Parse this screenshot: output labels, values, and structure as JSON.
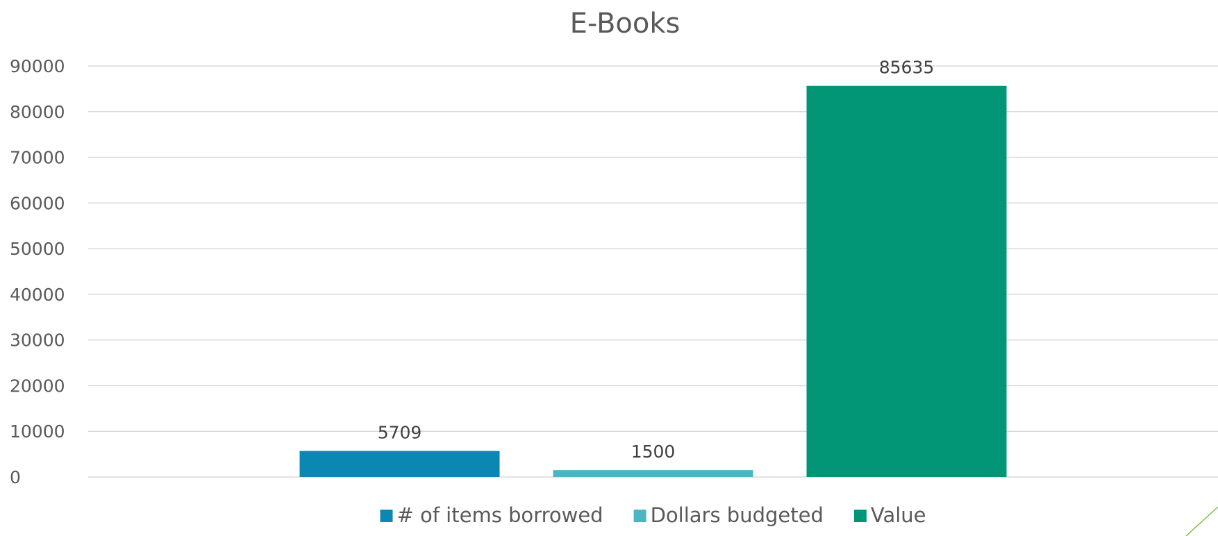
{
  "chart_data": {
    "type": "bar",
    "title": "E-Books",
    "xlabel": "",
    "ylabel": "",
    "categories": [
      ""
    ],
    "series": [
      {
        "name": "# of items borrowed",
        "values": [
          5709
        ],
        "color": "#0b87b4"
      },
      {
        "name": "Dollars budgeted",
        "values": [
          1500
        ],
        "color": "#4cb5c4"
      },
      {
        "name": "Value",
        "values": [
          85635
        ],
        "color": "#029676"
      }
    ],
    "ylim": [
      0,
      90000
    ],
    "yticks": [
      0,
      10000,
      20000,
      30000,
      40000,
      50000,
      60000,
      70000,
      80000,
      90000
    ],
    "grid": true,
    "data_labels": true,
    "legend_position": "bottom"
  },
  "colors": {
    "gridline": "#d9d9d9",
    "text": "#595959",
    "accent_line": "#7dc242"
  }
}
